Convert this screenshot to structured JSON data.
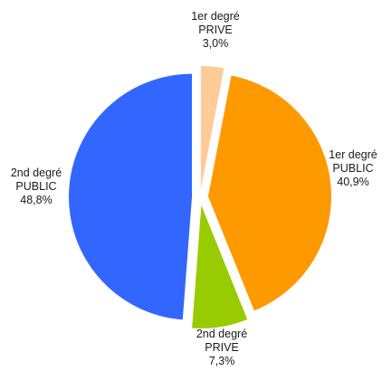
{
  "chart_data": {
    "type": "pie",
    "slices": [
      {
        "label_lines": [
          "1er degré",
          "PRIVE",
          "3,0%"
        ],
        "value": 3.0,
        "color": "#ffcc99"
      },
      {
        "label_lines": [
          "1er degré",
          "PUBLIC",
          "40,9%"
        ],
        "value": 40.9,
        "color": "#ff9900"
      },
      {
        "label_lines": [
          "2nd degré",
          "PRIVE",
          "7,3%"
        ],
        "value": 7.3,
        "color": "#99cc00"
      },
      {
        "label_lines": [
          "2nd degré",
          "PUBLIC",
          "48,8%"
        ],
        "value": 48.8,
        "color": "#3366ff"
      }
    ],
    "exploded": true,
    "legend": "none"
  }
}
